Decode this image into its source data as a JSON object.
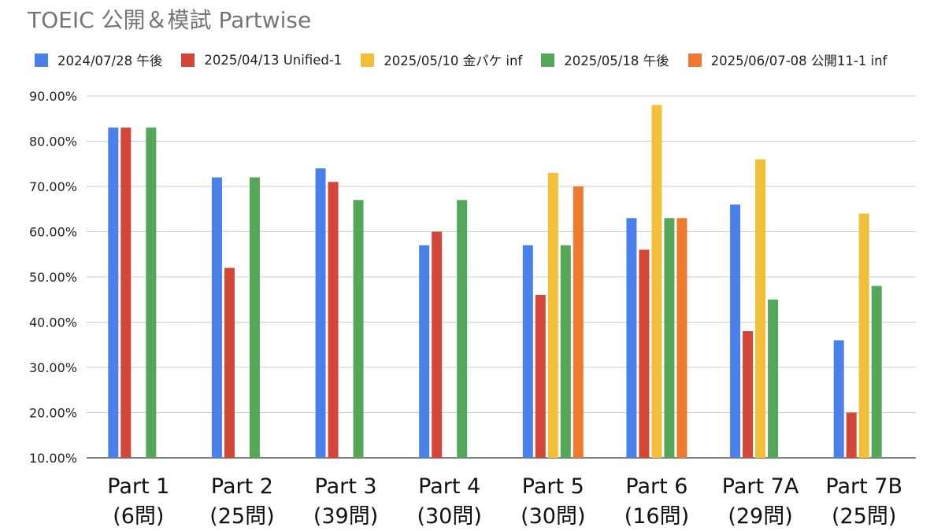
{
  "chart_data": {
    "type": "bar",
    "title": "TOEIC 公開＆模試 Partwise",
    "xlabel": "",
    "ylabel": "",
    "ylim": [
      10,
      90
    ],
    "yticks": [
      "10.00%",
      "20.00%",
      "30.00%",
      "40.00%",
      "50.00%",
      "60.00%",
      "70.00%",
      "80.00%",
      "90.00%"
    ],
    "ytick_values": [
      10,
      20,
      30,
      40,
      50,
      60,
      70,
      80,
      90
    ],
    "grid": true,
    "legend_position": "top",
    "categories": [
      [
        "Part 1",
        "(6問)"
      ],
      [
        "Part 2",
        "(25問)"
      ],
      [
        "Part 3",
        "(39問)"
      ],
      [
        "Part 4",
        "(30問)"
      ],
      [
        "Part 5",
        "(30問)"
      ],
      [
        "Part 6",
        "(16問)"
      ],
      [
        "Part 7A",
        "(29問)"
      ],
      [
        "Part 7B",
        "(25問)"
      ]
    ],
    "series": [
      {
        "name": "2024/07/28  午後",
        "color": "#4a80ea",
        "values": [
          83,
          72,
          74,
          57,
          57,
          63,
          66,
          36
        ]
      },
      {
        "name": "2025/04/13 Unified-1",
        "color": "#d44638",
        "values": [
          83,
          52,
          71,
          60,
          46,
          56,
          38,
          20
        ]
      },
      {
        "name": "2025/05/10  金パケ inf",
        "color": "#f2c038",
        "values": [
          null,
          null,
          null,
          null,
          73,
          88,
          76,
          64
        ]
      },
      {
        "name": "2025/05/18  午後",
        "color": "#54a758",
        "values": [
          83,
          72,
          67,
          67,
          57,
          63,
          45,
          48
        ]
      },
      {
        "name": "2025/06/07-08  公開11-1 inf",
        "color": "#ee7a30",
        "values": [
          null,
          null,
          null,
          null,
          70,
          63,
          null,
          null
        ]
      }
    ]
  }
}
